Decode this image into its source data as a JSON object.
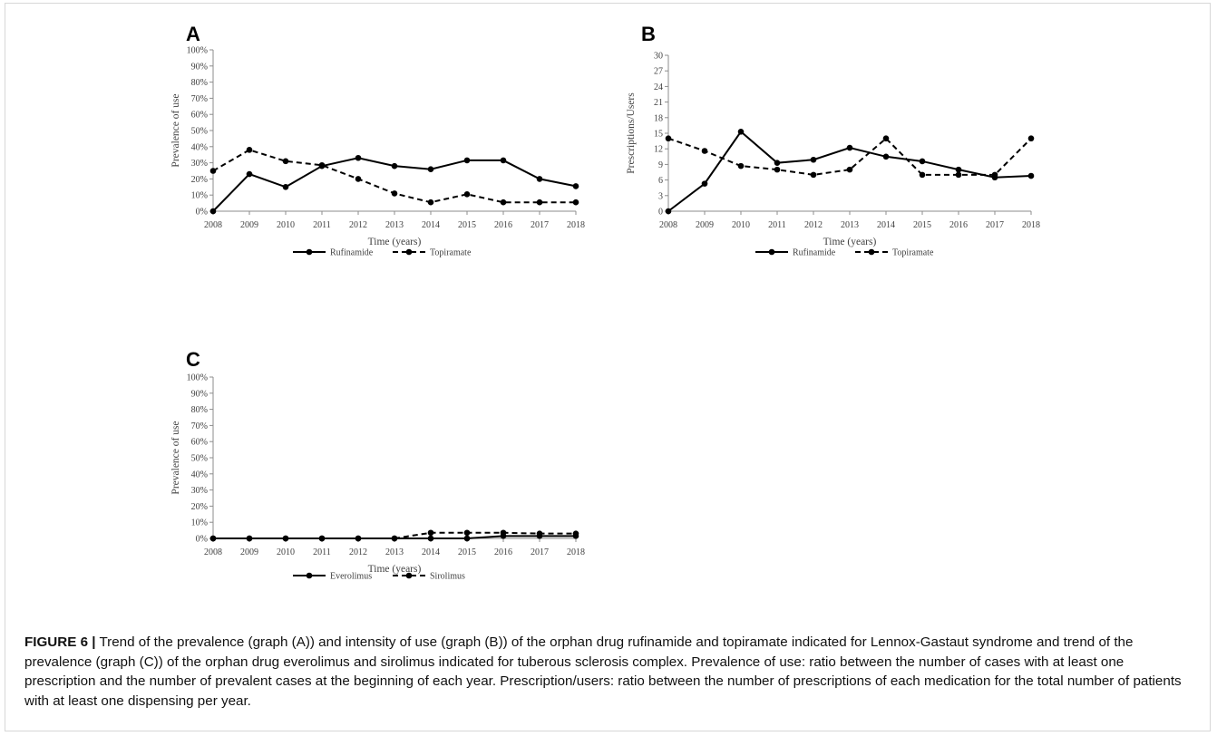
{
  "figure": {
    "caption_label": "FIGURE 6 |",
    "caption_text": " Trend of the prevalence (graph (A)) and intensity of use (graph (B)) of the orphan drug rufinamide and topiramate indicated for Lennox-Gastaut syndrome and trend of the prevalence (graph (C)) of the orphan drug everolimus and sirolimus indicated for tuberous sclerosis complex. Prevalence of use: ratio between the number of cases with at least one prescription and the number of prevalent cases at the beginning of each year. Prescription/users: ratio between the number of prescriptions of each medication for the total number of patients with at least one dispensing per year."
  },
  "chart_data": [
    {
      "panel": "A",
      "type": "line",
      "xlabel": "Time (years)",
      "ylabel": "Prevalence of use",
      "x": [
        "2008",
        "2009",
        "2010",
        "2011",
        "2012",
        "2013",
        "2014",
        "2015",
        "2016",
        "2017",
        "2018"
      ],
      "ylim": [
        0,
        100
      ],
      "yticks": [
        0,
        10,
        20,
        30,
        40,
        50,
        60,
        70,
        80,
        90,
        100
      ],
      "ytick_suffix": "%",
      "legend_position": "bottom",
      "grid": false,
      "series": [
        {
          "name": "Rufinamide",
          "style": "solid",
          "values": [
            0,
            23,
            15,
            28,
            33,
            28,
            26,
            31.5,
            31.5,
            20,
            15.5
          ]
        },
        {
          "name": "Topiramate",
          "style": "dashed",
          "values": [
            25,
            38,
            31,
            28.5,
            20,
            11,
            5.5,
            10.5,
            5.5,
            5.5,
            5.5
          ]
        }
      ]
    },
    {
      "panel": "B",
      "type": "line",
      "xlabel": "Time (years)",
      "ylabel": "Prescriptions/Users",
      "x": [
        "2008",
        "2009",
        "2010",
        "2011",
        "2012",
        "2013",
        "2014",
        "2015",
        "2016",
        "2017",
        "2018"
      ],
      "ylim": [
        0,
        30
      ],
      "yticks": [
        0,
        3,
        6,
        9,
        12,
        15,
        18,
        21,
        24,
        27,
        30
      ],
      "ytick_suffix": "",
      "legend_position": "bottom",
      "grid": false,
      "series": [
        {
          "name": "Rufinamide",
          "style": "solid",
          "values": [
            0,
            5.3,
            15.3,
            9.3,
            9.9,
            12.2,
            10.5,
            9.6,
            8,
            6.5,
            6.8
          ]
        },
        {
          "name": "Topiramate",
          "style": "dashed",
          "values": [
            14,
            11.6,
            8.7,
            8,
            7,
            8,
            14,
            7,
            7,
            7,
            14
          ]
        }
      ]
    },
    {
      "panel": "C",
      "type": "line",
      "xlabel": "Time (years)",
      "ylabel": "Prevalence of use",
      "x": [
        "2008",
        "2009",
        "2010",
        "2011",
        "2012",
        "2013",
        "2014",
        "2015",
        "2016",
        "2017",
        "2018"
      ],
      "ylim": [
        0,
        100
      ],
      "yticks": [
        0,
        10,
        20,
        30,
        40,
        50,
        60,
        70,
        80,
        90,
        100
      ],
      "ytick_suffix": "%",
      "legend_position": "bottom",
      "grid": false,
      "series": [
        {
          "name": "Everolimus",
          "style": "solid",
          "values": [
            0,
            0,
            0,
            0,
            0,
            0,
            0,
            0,
            1.5,
            1.5,
            1.5
          ]
        },
        {
          "name": "Sirolimus",
          "style": "dashed",
          "values": [
            0,
            0,
            0,
            0,
            0,
            0,
            3.5,
            3.5,
            3.5,
            3,
            3
          ]
        }
      ]
    }
  ]
}
